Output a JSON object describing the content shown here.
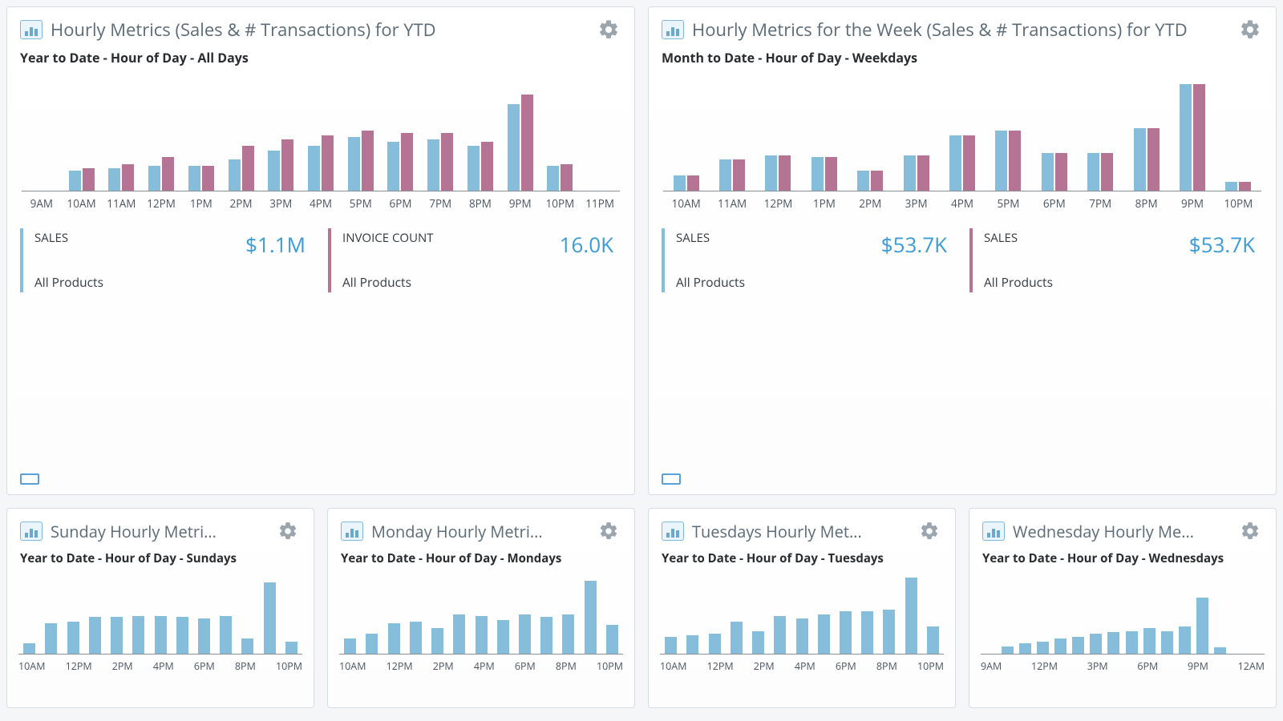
{
  "colors": {
    "series1": "#86bdda",
    "series2": "#b57493",
    "value_blue": "#3a9bd6",
    "text_muted": "#5b6b78",
    "axis": "#8a8f94",
    "gear": "#9aa5ae"
  },
  "top": [
    {
      "title": "Hourly Metrics (Sales & # Transactions) for YTD",
      "subtitle": "Year to Date - Hour of Day - All Days",
      "chart": {
        "type": "grouped-bar",
        "ymax": 100,
        "categories": [
          "9AM",
          "10AM",
          "11AM",
          "12PM",
          "1PM",
          "2PM",
          "3PM",
          "4PM",
          "5PM",
          "6PM",
          "7PM",
          "8PM",
          "9PM",
          "10PM",
          "11PM"
        ],
        "series": [
          {
            "name": "Sales",
            "color": "#86bdda",
            "values": [
              0,
              18,
              20,
              22,
              22,
              28,
              36,
              40,
              48,
              44,
              46,
              40,
              78,
              22,
              0
            ]
          },
          {
            "name": "Invoice",
            "color": "#b57493",
            "values": [
              0,
              20,
              24,
              30,
              22,
              40,
              46,
              50,
              54,
              52,
              52,
              44,
              86,
              24,
              0
            ]
          }
        ]
      },
      "metrics": [
        {
          "label": "SALES",
          "value": "$1.1M",
          "sub": "All Products",
          "accent": "#86bdda",
          "value_color": "#3a9bd6"
        },
        {
          "label": "INVOICE COUNT",
          "value": "16.0K",
          "sub": "All Products",
          "accent": "#b57493",
          "value_color": "#3a9bd6"
        }
      ]
    },
    {
      "title": "Hourly Metrics for the Week (Sales & # Transactions) for YTD",
      "subtitle": "Month to Date - Hour of Day - Weekdays",
      "chart": {
        "type": "grouped-bar",
        "ymax": 100,
        "categories": [
          "10AM",
          "11AM",
          "12PM",
          "1PM",
          "2PM",
          "3PM",
          "4PM",
          "5PM",
          "6PM",
          "7PM",
          "8PM",
          "9PM",
          "10PM"
        ],
        "series": [
          {
            "name": "Sales",
            "color": "#86bdda",
            "values": [
              14,
              28,
              32,
              30,
              18,
              32,
              50,
              54,
              34,
              34,
              56,
              96,
              8
            ]
          },
          {
            "name": "Sales2",
            "color": "#b57493",
            "values": [
              14,
              28,
              32,
              30,
              18,
              32,
              50,
              54,
              34,
              34,
              56,
              96,
              8
            ]
          }
        ]
      },
      "metrics": [
        {
          "label": "SALES",
          "value": "$53.7K",
          "sub": "All Products",
          "accent": "#86bdda",
          "value_color": "#3a9bd6"
        },
        {
          "label": "SALES",
          "value": "$53.7K",
          "sub": "All Products",
          "accent": "#b57493",
          "value_color": "#3a9bd6"
        }
      ]
    }
  ],
  "bottom": [
    {
      "title": "Sunday Hourly Metri...",
      "subtitle": "Year to Date - Hour of Day - Sundays",
      "chart": {
        "type": "bar",
        "ymax": 100,
        "color": "#86bdda",
        "categories": [
          "10AM",
          "",
          "12PM",
          "",
          "2PM",
          "",
          "4PM",
          "",
          "6PM",
          "",
          "8PM",
          "",
          "10PM"
        ],
        "values": [
          14,
          40,
          42,
          48,
          48,
          50,
          50,
          48,
          46,
          50,
          20,
          94,
          16
        ]
      }
    },
    {
      "title": "Monday Hourly Metri...",
      "subtitle": "Year to Date - Hour of Day - Mondays",
      "chart": {
        "type": "bar",
        "ymax": 100,
        "color": "#86bdda",
        "categories": [
          "10AM",
          "",
          "12PM",
          "",
          "2PM",
          "",
          "4PM",
          "",
          "6PM",
          "",
          "8PM",
          "",
          "10PM"
        ],
        "values": [
          20,
          26,
          40,
          42,
          34,
          52,
          50,
          44,
          52,
          48,
          52,
          96,
          38
        ]
      }
    },
    {
      "title": "Tuesdays Hourly Met...",
      "subtitle": "Year to Date - Hour of Day - Tuesdays",
      "chart": {
        "type": "bar",
        "ymax": 100,
        "color": "#86bdda",
        "categories": [
          "10AM",
          "",
          "12PM",
          "",
          "2PM",
          "",
          "4PM",
          "",
          "6PM",
          "",
          "8PM",
          "",
          "10PM"
        ],
        "values": [
          22,
          24,
          26,
          42,
          30,
          50,
          46,
          52,
          56,
          56,
          58,
          100,
          36
        ]
      }
    },
    {
      "title": "Wednesday Hourly Me...",
      "subtitle": "Year to Date - Hour of Day - Wednesdays",
      "chart": {
        "type": "bar",
        "ymax": 100,
        "color": "#86bdda",
        "categories": [
          "9AM",
          "",
          "",
          "12PM",
          "",
          "",
          "3PM",
          "",
          "",
          "6PM",
          "",
          "",
          "9PM",
          "",
          "",
          "12AM"
        ],
        "values": [
          0,
          10,
          14,
          16,
          20,
          22,
          26,
          28,
          30,
          34,
          30,
          36,
          74,
          8,
          0,
          0
        ]
      }
    }
  ]
}
